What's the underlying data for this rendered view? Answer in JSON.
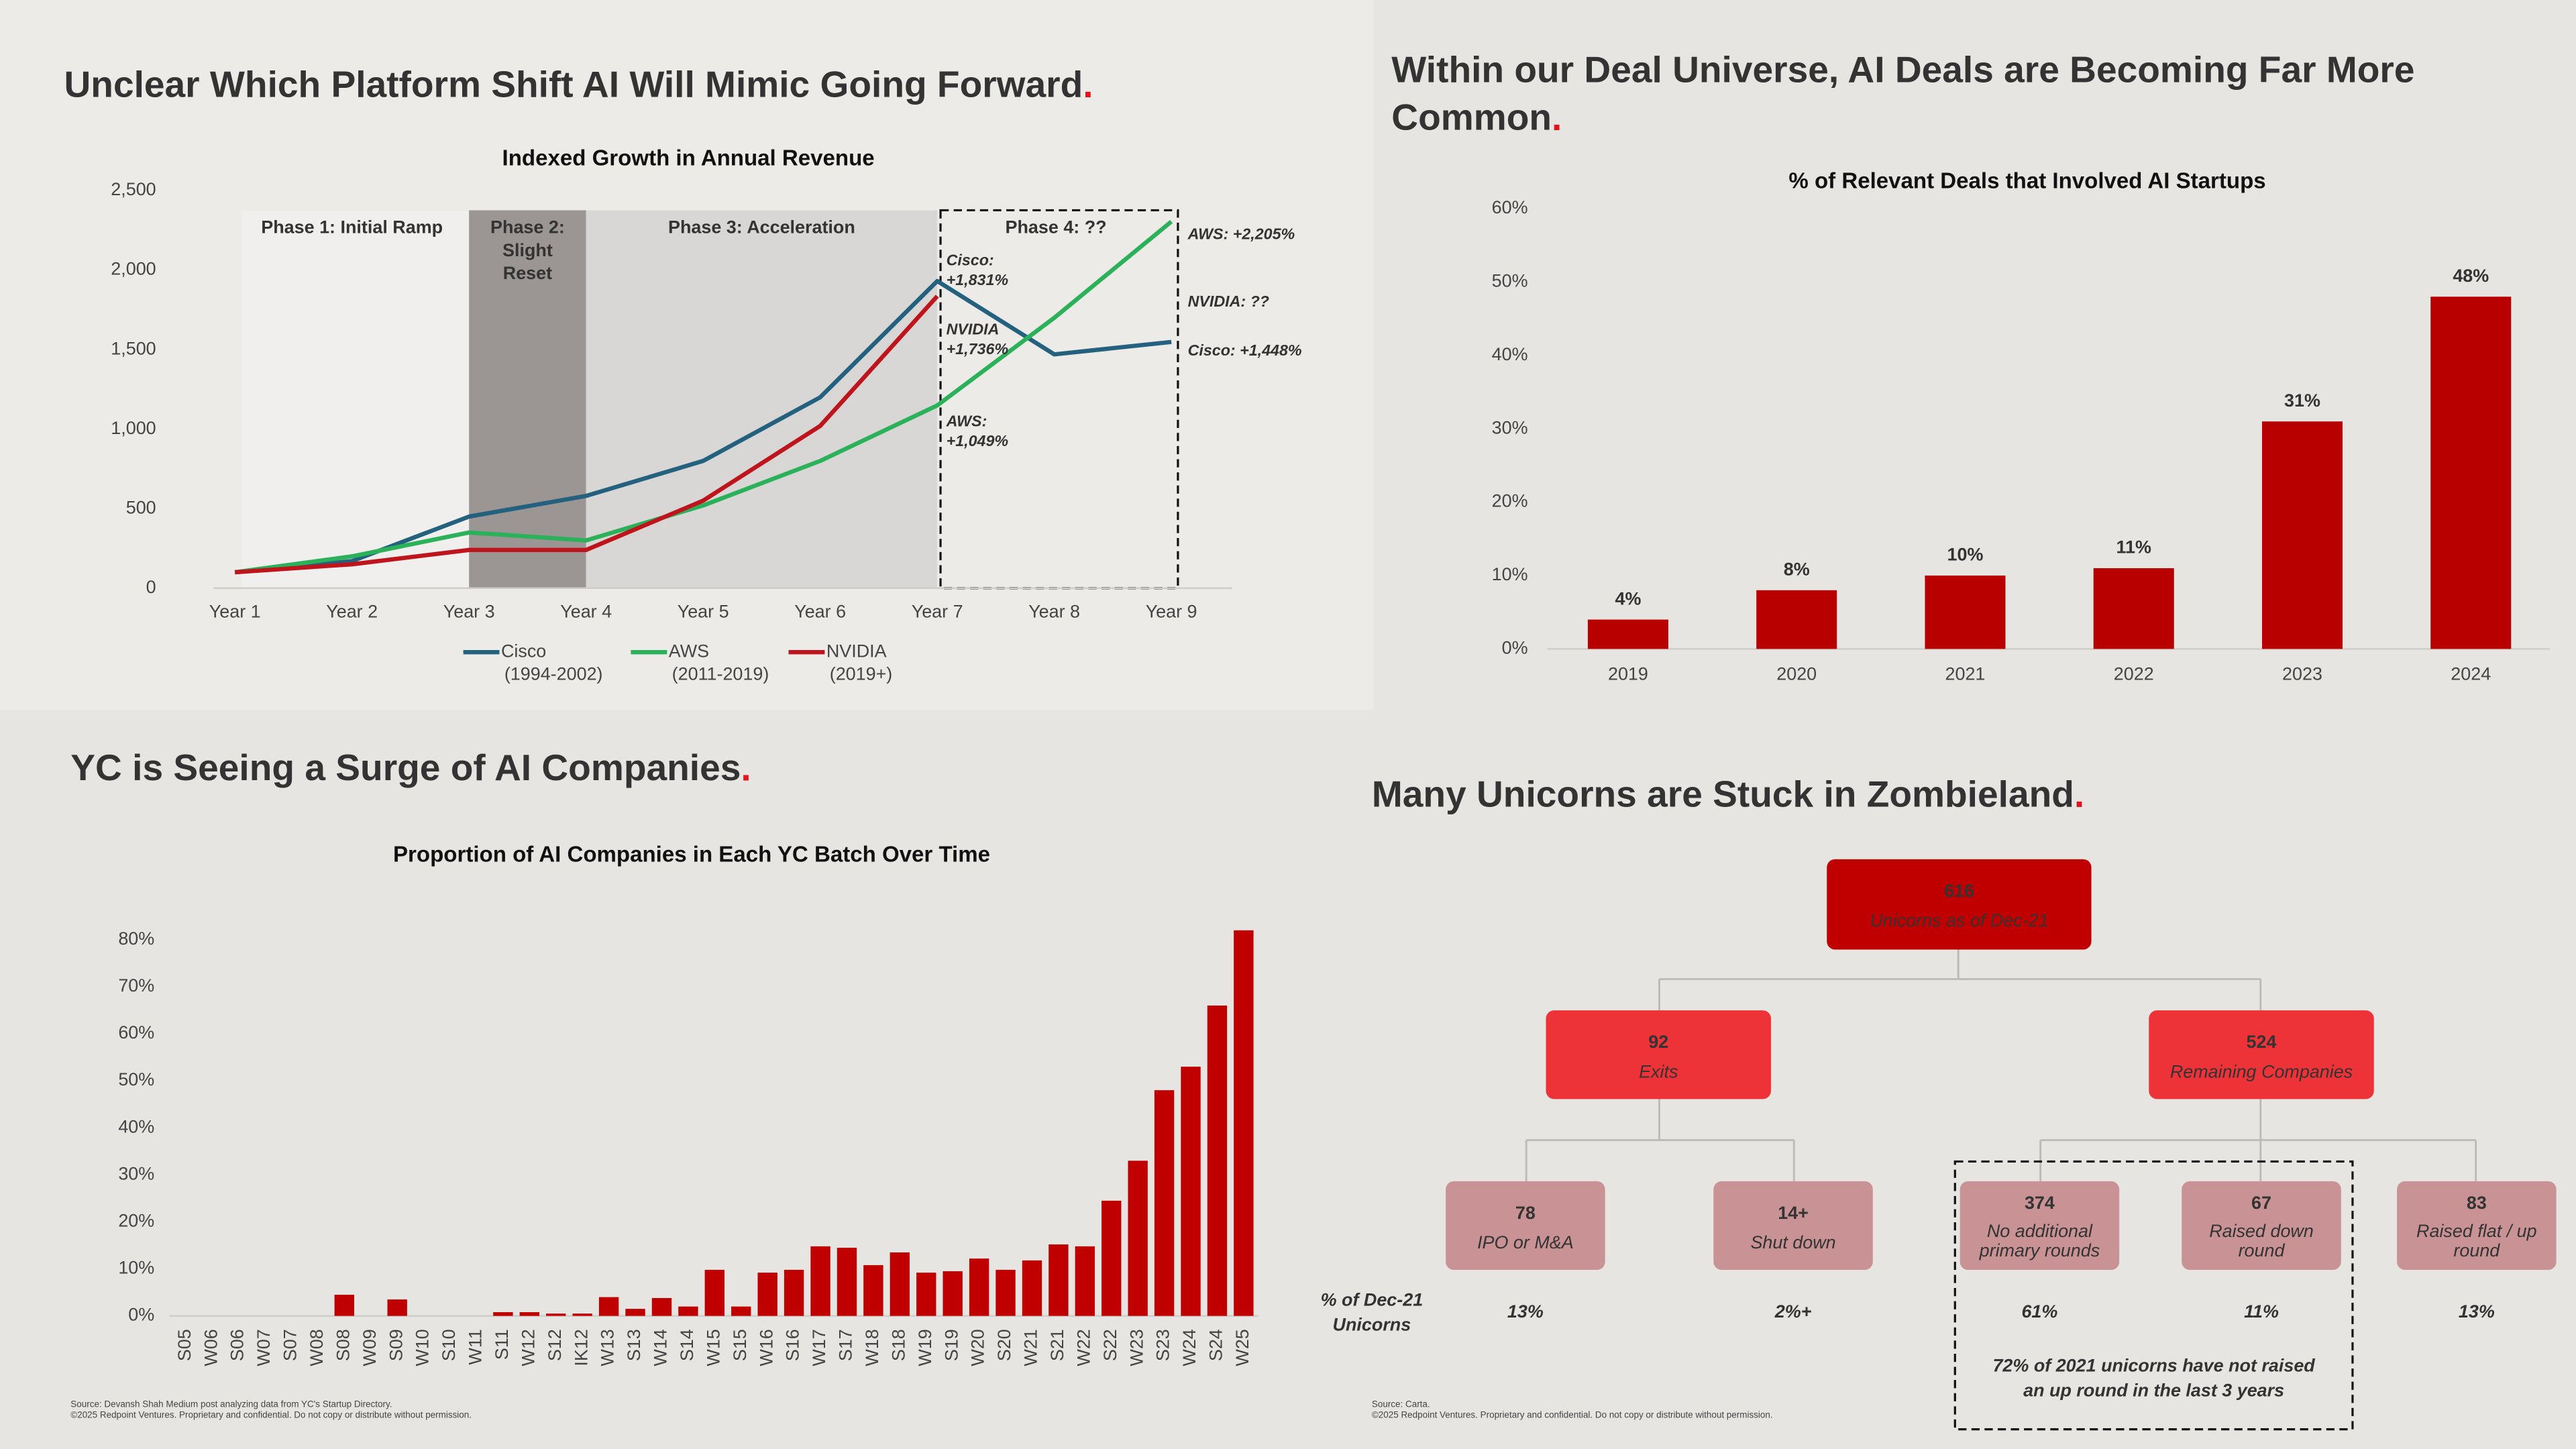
{
  "chart_data": [
    {
      "type": "line",
      "title": "Unclear Which Platform Shift AI Will Mimic Going Forward.",
      "subtitle": "Indexed Growth in Annual Revenue",
      "categories": [
        "Year 1",
        "Year 2",
        "Year 3",
        "Year 4",
        "Year 5",
        "Year 6",
        "Year 7",
        "Year 8",
        "Year 9"
      ],
      "ylim": [
        0,
        2500
      ],
      "yticks": [
        0,
        500,
        {
          "value": 1000,
          "label": "1,000"
        },
        {
          "value": 1500,
          "label": "1,500"
        },
        {
          "value": 2000,
          "label": "2,000"
        },
        {
          "value": 2500,
          "label": "2,500"
        }
      ],
      "series": [
        {
          "name": "Cisco",
          "period": "(1994-2002)",
          "color": "#23617f",
          "values": [
            100,
            170,
            450,
            580,
            800,
            1200,
            1931,
            1470,
            1548
          ]
        },
        {
          "name": "AWS",
          "period": "(2011-2019)",
          "color": "#2bb15a",
          "values": [
            100,
            200,
            350,
            300,
            520,
            800,
            1149,
            1700,
            2305
          ]
        },
        {
          "name": "NVIDIA",
          "period": "(2019+)",
          "color": "#c0141c",
          "values": [
            100,
            150,
            240,
            240,
            550,
            1020,
            1836,
            null,
            null
          ]
        }
      ],
      "phases": [
        {
          "lines": [
            "Phase 1: Initial Ramp"
          ],
          "start": "Year 1",
          "end": "Year 3",
          "color": "#f0efed"
        },
        {
          "lines": [
            "Phase 2:",
            "Slight",
            "Reset"
          ],
          "start": "Year 3",
          "end": "Year 4",
          "color": "#9b9594"
        },
        {
          "lines": [
            "Phase 3: Acceleration"
          ],
          "start": "Year 4",
          "end": "Year 7",
          "color": "#d8d7d5"
        },
        {
          "lines": [
            "Phase 4: ??"
          ],
          "start": "Year 7",
          "end": "Year 9",
          "color": "none"
        }
      ],
      "annotations": [
        {
          "lines": [
            "Cisco:",
            "+1,831%"
          ]
        },
        {
          "lines": [
            "NVIDIA",
            "+1,736%"
          ]
        },
        {
          "lines": [
            "AWS:",
            "+1,049%"
          ]
        },
        {
          "lines": [
            "AWS: +2,205%"
          ]
        },
        {
          "lines": [
            "NVIDIA: ??"
          ]
        },
        {
          "lines": [
            "Cisco: +1,448%"
          ]
        }
      ]
    },
    {
      "type": "bar",
      "title": [
        "Within our Deal Universe, AI Deals are Becoming Far More",
        "Common."
      ],
      "subtitle": "% of Relevant Deals that Involved AI Startups",
      "categories": [
        "2019",
        "2020",
        "2021",
        "2022",
        "2023",
        "2024"
      ],
      "values": [
        4,
        8,
        10,
        11,
        31,
        48
      ],
      "value_labels": [
        "4%",
        "8%",
        "10%",
        "11%",
        "31%",
        "48%"
      ],
      "color": "#b80000",
      "ylim": [
        0,
        60
      ],
      "yticks": [
        {
          "value": 0,
          "label": "0%"
        },
        {
          "value": 10,
          "label": "10%"
        },
        {
          "value": 20,
          "label": "20%"
        },
        {
          "value": 30,
          "label": "30%"
        },
        {
          "value": 40,
          "label": "40%"
        },
        {
          "value": 50,
          "label": "50%"
        },
        {
          "value": 60,
          "label": "60%"
        }
      ]
    },
    {
      "type": "bar",
      "title": "YC is Seeing a Surge of AI Companies.",
      "subtitle": "Proportion of AI Companies in Each YC Batch Over Time",
      "categories": [
        "S05",
        "W06",
        "S06",
        "W07",
        "S07",
        "W08",
        "S08",
        "W09",
        "S09",
        "W10",
        "S10",
        "W11",
        "S11",
        "W12",
        "S12",
        "IK12",
        "W13",
        "S13",
        "W14",
        "S14",
        "W15",
        "S15",
        "W16",
        "S16",
        "W17",
        "S17",
        "W18",
        "S18",
        "W19",
        "S19",
        "W20",
        "S20",
        "W21",
        "S21",
        "W22",
        "S22",
        "W23",
        "S23",
        "W24",
        "S24",
        "W25"
      ],
      "values": [
        0,
        0,
        0,
        0,
        0,
        0,
        4.5,
        0,
        3.5,
        0,
        0,
        0,
        0.8,
        0.8,
        0.5,
        0.5,
        4,
        1.5,
        3.8,
        2,
        9.8,
        2,
        9.2,
        9.8,
        14.8,
        14.5,
        10.8,
        13.5,
        9.2,
        9.5,
        12.2,
        9.8,
        11.8,
        15.2,
        14.8,
        24.5,
        33,
        48,
        53,
        66,
        82
      ],
      "color": "#c00000",
      "ylim": [
        0,
        80
      ],
      "yticks": [
        {
          "value": 0,
          "label": "0%"
        },
        {
          "value": 10,
          "label": "10%"
        },
        {
          "value": 20,
          "label": "20%"
        },
        {
          "value": 30,
          "label": "30%"
        },
        {
          "value": 40,
          "label": "40%"
        },
        {
          "value": 50,
          "label": "50%"
        },
        {
          "value": 60,
          "label": "60%"
        },
        {
          "value": 70,
          "label": "70%"
        },
        {
          "value": 80,
          "label": "80%"
        }
      ],
      "footnotes": [
        "Source: Devansh Shah Medium post analyzing data from YC's Startup Directory.",
        "©2025 Redpoint Ventures. Proprietary and confidential. Do not copy or distribute without permission."
      ]
    }
  ],
  "zombieland": {
    "title": "Many Unicorns are Stuck in Zombieland.",
    "nodes": [
      {
        "value": "616",
        "label": [
          "Unicorns as of Dec-21"
        ]
      },
      {
        "value": "92",
        "label": [
          "Exits"
        ]
      },
      {
        "value": "524",
        "label": [
          "Remaining Companies"
        ]
      },
      {
        "value": "78",
        "label": [
          "IPO or M&A"
        ],
        "share": "13%"
      },
      {
        "value": "14+",
        "label": [
          "Shut down"
        ],
        "share": "2%+"
      },
      {
        "value": "374",
        "label": [
          "No additional",
          "primary rounds"
        ],
        "share": "61%"
      },
      {
        "value": "67",
        "label": [
          "Raised down",
          "round"
        ],
        "share": "11%"
      },
      {
        "value": "83",
        "label": [
          "Raised flat / up",
          "round"
        ],
        "share": "13%"
      }
    ],
    "share_label": [
      "% of Dec-21",
      "Unicorns"
    ],
    "note": [
      "72% of 2021 unicorns have not raised",
      "an up round in the last 3 years"
    ],
    "footnotes": [
      "Source: Carta.",
      "©2025 Redpoint Ventures. Proprietary and confidential. Do not copy or distribute without permission."
    ]
  }
}
